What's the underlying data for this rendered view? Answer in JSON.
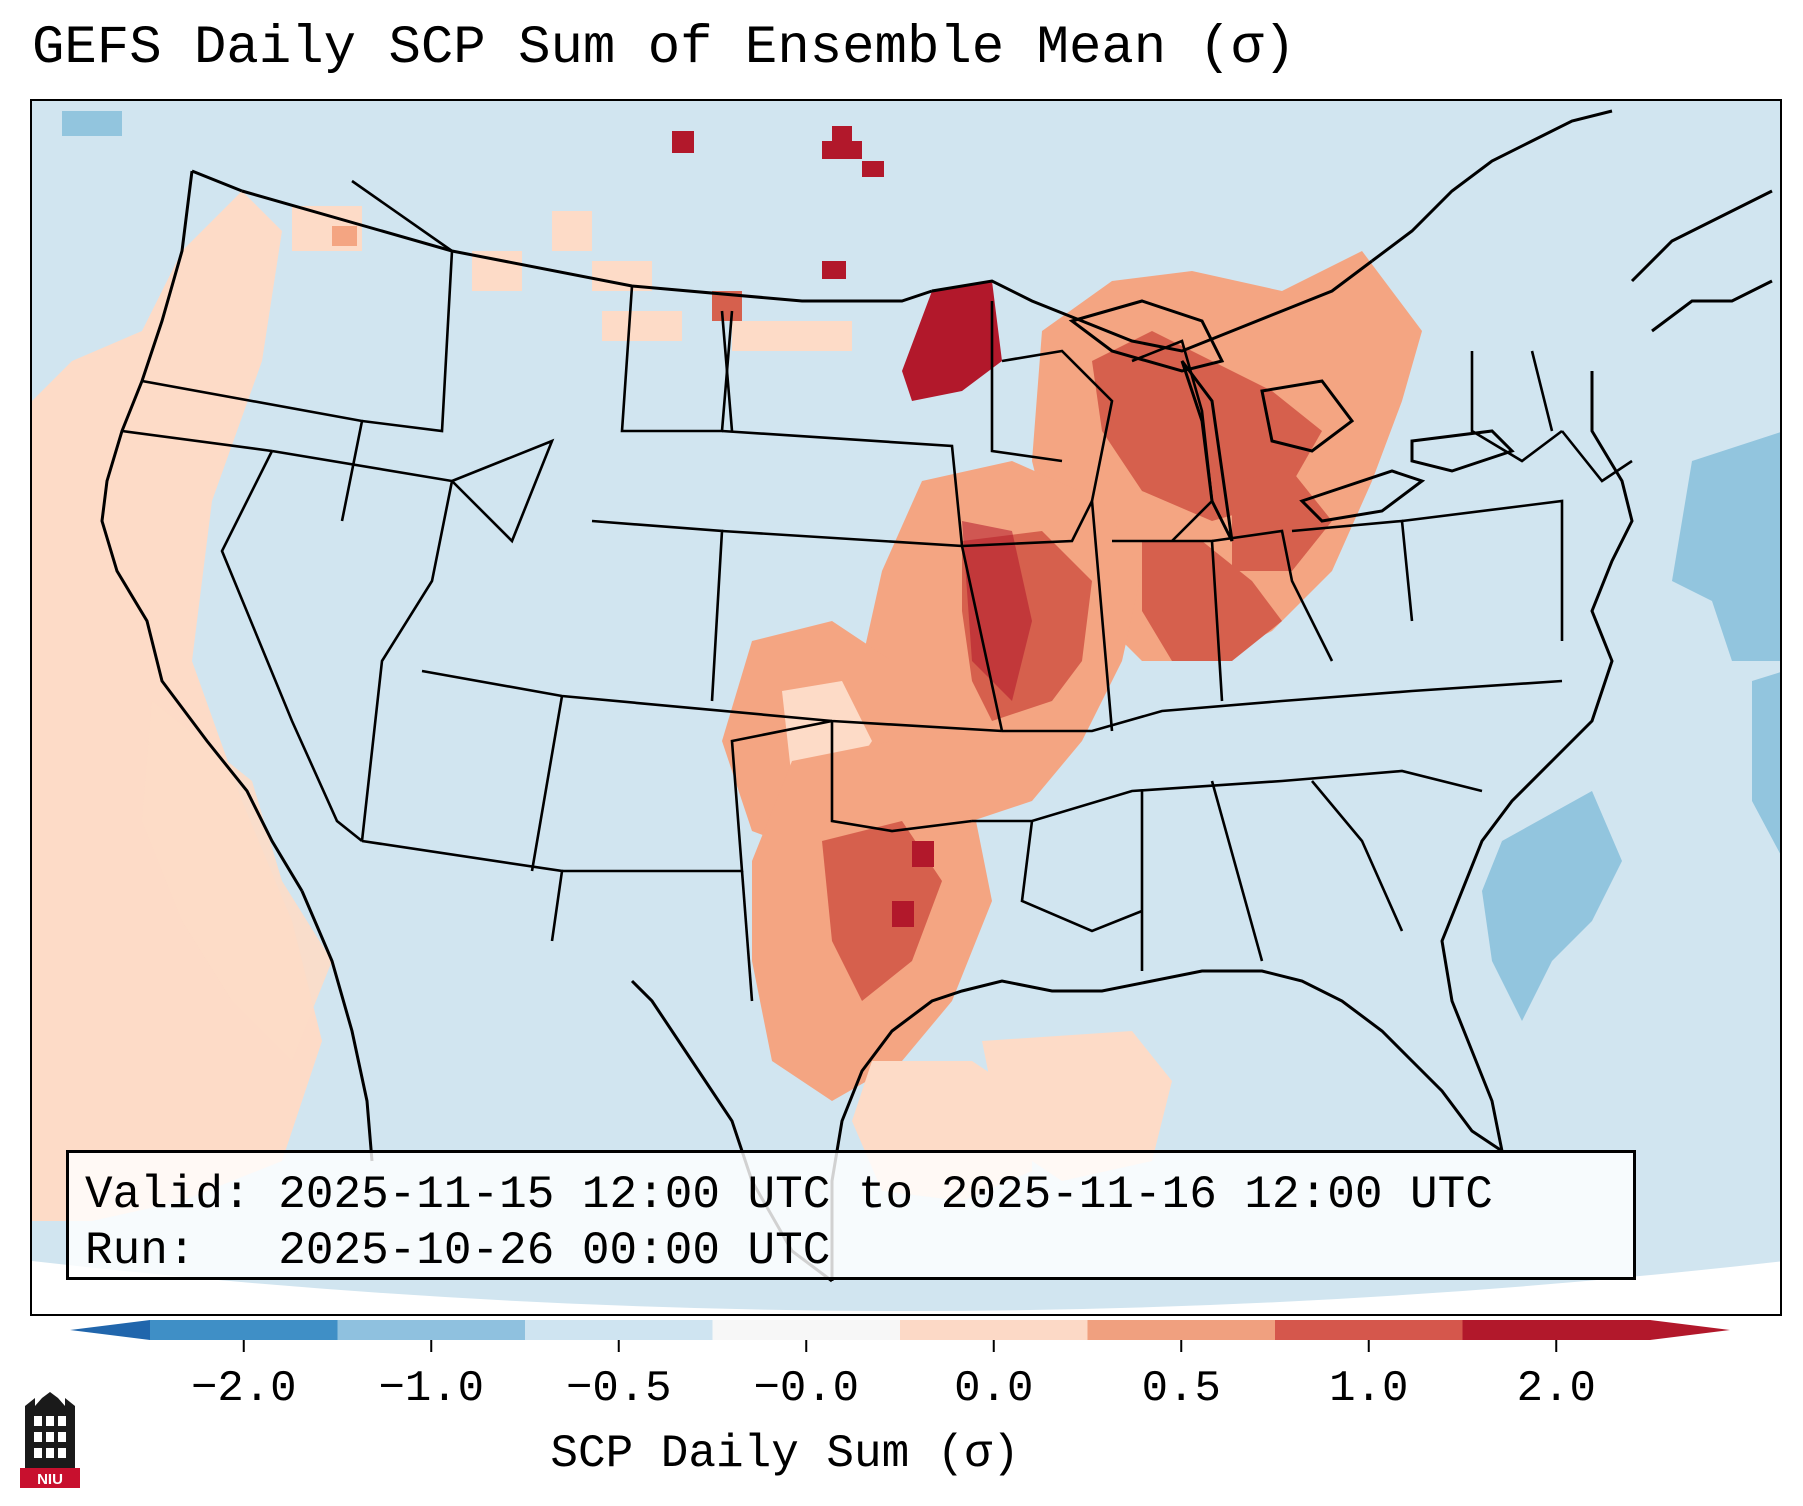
{
  "title": "GEFS Daily SCP Sum of Ensemble Mean (σ)",
  "info": {
    "valid_label": "Valid:",
    "valid_value": "2025-11-15 12:00 UTC to 2025-11-16 12:00 UTC",
    "run_label": "Run:",
    "run_value": "2025-10-26 00:00 UTC"
  },
  "colorbar": {
    "label": "SCP Daily Sum (σ)",
    "ticks": [
      "−2.0",
      "−1.0",
      "−0.5",
      "−0.0",
      "0.0",
      "0.5",
      "1.0",
      "2.0"
    ],
    "segment_colors": [
      "#3f8fc6",
      "#8fc1df",
      "#cfe4f1",
      "#f7f7f7",
      "#fcd9c6",
      "#f0a07f",
      "#d5574c",
      "#b2182b"
    ]
  },
  "logo": {
    "text": "NIU"
  },
  "map": {
    "region": "Contiguous United States",
    "background_color": "#d1e5f0",
    "highlight_color_strong": "#b2182b",
    "highlight_color_medium": "#d6604d",
    "highlight_color_light": "#f4a582",
    "highlight_color_faint": "#fddbc7"
  }
}
